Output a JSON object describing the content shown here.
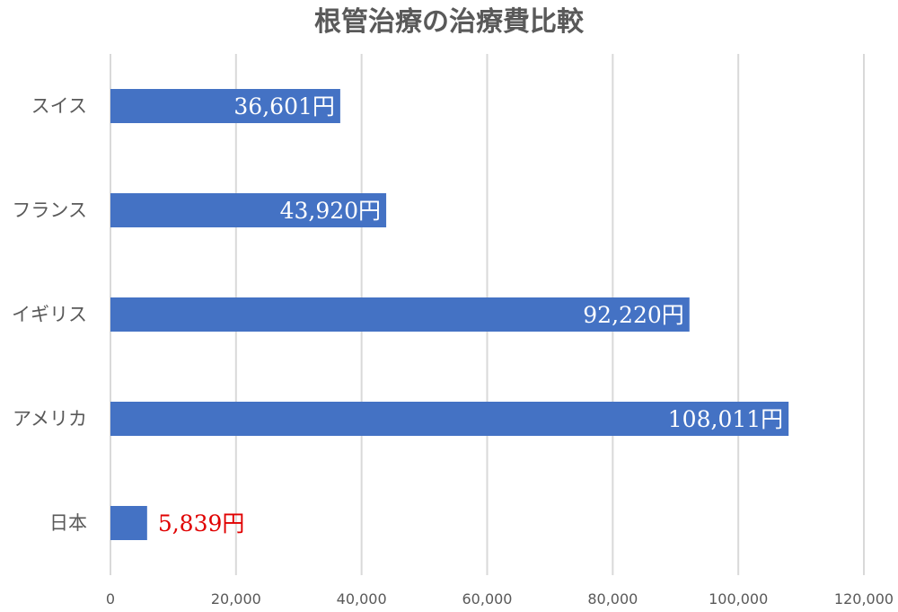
{
  "chart_data": {
    "type": "bar",
    "orientation": "horizontal",
    "title": "根管治療の治療費比較",
    "categories": [
      "スイス",
      "フランス",
      "イギリス",
      "アメリカ",
      "日本"
    ],
    "values": [
      36601,
      43920,
      92220,
      108011,
      5839
    ],
    "data_labels": [
      "36,601円",
      "43,920円",
      "92,220円",
      "108,011円",
      "5,839円"
    ],
    "xlim": [
      0,
      120000
    ],
    "x_ticks": [
      0,
      20000,
      40000,
      60000,
      80000,
      100000,
      120000
    ],
    "x_tick_labels": [
      "0",
      "20,000",
      "40,000",
      "60,000",
      "80,000",
      "100,000",
      "120,000"
    ],
    "grid": "vertical",
    "legend": "none",
    "bar_color": "#4472c4",
    "label_color_inside": "#ffffff",
    "label_color_highlight": "#e00000"
  }
}
